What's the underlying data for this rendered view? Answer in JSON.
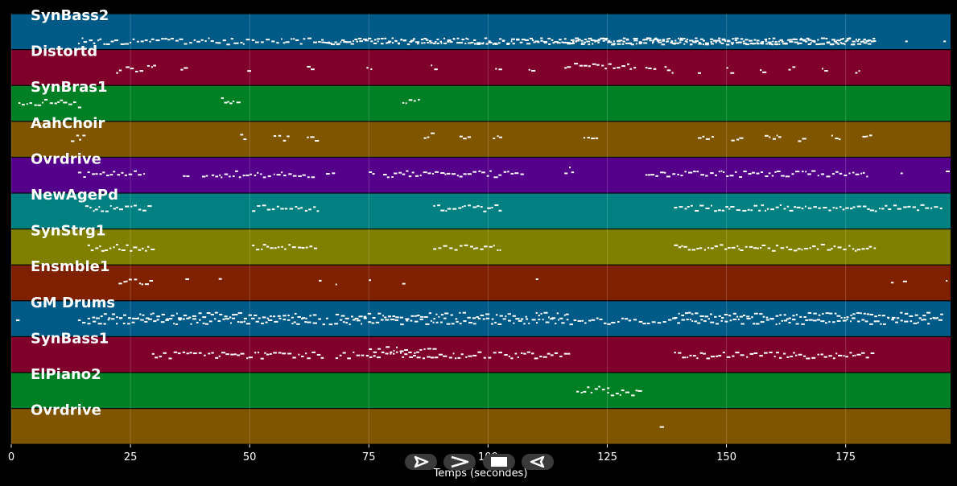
{
  "chart_data": {
    "type": "piano-roll",
    "title": "",
    "xlabel": "Temps (secondes)",
    "ylabel": "",
    "xlim": [
      0,
      197
    ],
    "xticks": [
      0,
      25,
      50,
      75,
      100,
      125,
      150,
      175
    ],
    "grid": true,
    "tracks": [
      {
        "name": "SynBass2",
        "color": "#005a87",
        "segments": [
          [
            14,
            200
          ],
          [
            65,
            195
          ],
          [
            116,
            188
          ]
        ],
        "notes": [
          [
            187.5,
            0.5,
            0.4
          ],
          [
            195.5,
            0.5,
            0.4
          ]
        ]
      },
      {
        "name": "Distortd",
        "color": "#80002c",
        "segments": [
          [
            22,
            23,
            0.55
          ],
          [
            24,
            25,
            0.55
          ],
          [
            26,
            27.5,
            0.55
          ],
          [
            28.5,
            30,
            0.5
          ],
          [
            35.5,
            36.5,
            0.55
          ],
          [
            49.5,
            50.5,
            0.5
          ],
          [
            62,
            63,
            0.5
          ],
          [
            74.5,
            75.5,
            0.55
          ],
          [
            88,
            89,
            0.5
          ],
          [
            101.5,
            102.5,
            0.5
          ],
          [
            108.5,
            109.5,
            0.55
          ],
          [
            116,
            117,
            0.55
          ],
          [
            118,
            131,
            0.45
          ],
          [
            133,
            135,
            0.55
          ],
          [
            137,
            139,
            0.55
          ],
          [
            144,
            145,
            0.55
          ],
          [
            150,
            151,
            0.55
          ],
          [
            157,
            158,
            0.55
          ],
          [
            163,
            164,
            0.55
          ],
          [
            170,
            171,
            0.55
          ],
          [
            177,
            178,
            0.55
          ]
        ],
        "density": "mixed"
      },
      {
        "name": "SynBras1",
        "color": "#008024",
        "segments": [
          [
            1.5,
            11.5,
            0.45
          ],
          [
            12,
            15,
            0.5
          ],
          [
            44,
            48,
            0.4
          ],
          [
            82,
            86,
            0.4
          ]
        ]
      },
      {
        "name": "AahChoir",
        "color": "#7f5500",
        "segments": [
          [
            12.5,
            15,
            0.45
          ],
          [
            48,
            49.5,
            0.4
          ],
          [
            55,
            58,
            0.45
          ],
          [
            62,
            64,
            0.45
          ],
          [
            86.5,
            88,
            0.4
          ],
          [
            94,
            96.5,
            0.45
          ],
          [
            101,
            103,
            0.45
          ],
          [
            120,
            123,
            0.4
          ],
          [
            144,
            147,
            0.45
          ],
          [
            151,
            153,
            0.45
          ],
          [
            158,
            161,
            0.45
          ],
          [
            165,
            167,
            0.45
          ],
          [
            172,
            174,
            0.45
          ],
          [
            178.5,
            180.5,
            0.45
          ]
        ]
      },
      {
        "name": "Ovrdrive",
        "color": "#55008b",
        "segments": [
          [
            14,
            28,
            0.45
          ],
          [
            36,
            37,
            0.45
          ],
          [
            40,
            41,
            0.45
          ],
          [
            42,
            54,
            0.45
          ],
          [
            55,
            63,
            0.45
          ],
          [
            66,
            68,
            0.45
          ],
          [
            75,
            76,
            0.45
          ],
          [
            78,
            89,
            0.45
          ],
          [
            90,
            107,
            0.45
          ],
          [
            116,
            118,
            0.35
          ],
          [
            133,
            180,
            0.45
          ],
          [
            186.5,
            187,
            0.45
          ],
          [
            196,
            196.5,
            0.45
          ]
        ]
      },
      {
        "name": "NewAgePd",
        "color": "#008080",
        "segments": [
          [
            15.5,
            29.5,
            0.4
          ],
          [
            50.5,
            64.5,
            0.4
          ],
          [
            88.5,
            102.5,
            0.4
          ],
          [
            139,
            195,
            0.4
          ]
        ]
      },
      {
        "name": "SynStrg1",
        "color": "#808000",
        "segments": [
          [
            16,
            29.5,
            0.5
          ],
          [
            50.5,
            64.5,
            0.5
          ],
          [
            88.5,
            102.5,
            0.5
          ],
          [
            139,
            181,
            0.5
          ]
        ]
      },
      {
        "name": "Ensmble1",
        "color": "#7f2000",
        "segments": [
          [
            22.5,
            29.5,
            0.45
          ],
          [
            36.5,
            37,
            0.45
          ],
          [
            43.5,
            44,
            0.45
          ],
          [
            64.5,
            65,
            0.45
          ],
          [
            68,
            68.5,
            0.45
          ],
          [
            75,
            75.5,
            0.45
          ],
          [
            82,
            82.5,
            0.45
          ],
          [
            110,
            110.5,
            0.45
          ],
          [
            184.5,
            185,
            0.45
          ],
          [
            187,
            187.5,
            0.45
          ],
          [
            196,
            196.5,
            0.45
          ]
        ]
      },
      {
        "name": "GM Drums",
        "color": "#005a87",
        "segments": [
          [
            1,
            2,
            0.5
          ],
          [
            14,
            195,
            0.55
          ],
          [
            16,
            64,
            0.4
          ],
          [
            68,
            108,
            0.4
          ],
          [
            110,
            117,
            0.4
          ],
          [
            139,
            195,
            0.4
          ]
        ]
      },
      {
        "name": "SynBass1",
        "color": "#80002c",
        "segments": [
          [
            29.5,
            65,
            0.5
          ],
          [
            68,
            117,
            0.5
          ],
          [
            75,
            89,
            0.35
          ],
          [
            139,
            181,
            0.5
          ]
        ]
      },
      {
        "name": "ElPiano2",
        "color": "#008024",
        "segments": [
          [
            118.5,
            125,
            0.45
          ],
          [
            125,
            132,
            0.55
          ]
        ]
      },
      {
        "name": "Ovrdrive",
        "color": "#7f5500",
        "segments": [
          [
            136,
            136.8,
            0.45
          ]
        ]
      }
    ]
  },
  "controls": [
    {
      "name": "play-button",
      "icon": "play-outline-icon"
    },
    {
      "name": "forward-button",
      "icon": "chevron-right-icon"
    },
    {
      "name": "stop-button",
      "icon": "stop-icon"
    },
    {
      "name": "reverse-play-button",
      "icon": "play-reverse-outline-icon"
    }
  ]
}
